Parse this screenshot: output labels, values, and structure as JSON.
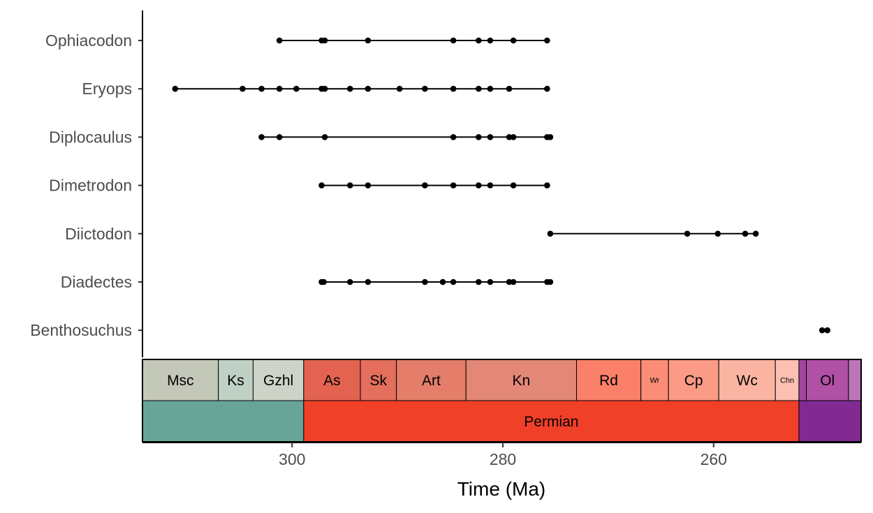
{
  "chart_data": {
    "type": "scatter",
    "xlabel": "Time (Ma)",
    "ylabel": "",
    "xlim": [
      314.2,
      246.0
    ],
    "x_reversed": true,
    "x_ticks": [
      300,
      280,
      260
    ],
    "grid": false,
    "taxa": [
      {
        "name": "Ophiacodon",
        "ages": [
          301.2,
          297.2,
          296.9,
          292.8,
          284.7,
          282.3,
          281.2,
          279.0,
          275.8
        ]
      },
      {
        "name": "Eryops",
        "ages": [
          311.1,
          304.7,
          302.9,
          301.2,
          299.6,
          297.2,
          296.9,
          294.5,
          292.8,
          289.8,
          287.4,
          284.7,
          282.3,
          281.2,
          279.4,
          275.8
        ]
      },
      {
        "name": "Diplocaulus",
        "ages": [
          302.9,
          301.2,
          296.9,
          284.7,
          282.3,
          281.2,
          279.4,
          279.0,
          275.8,
          275.5
        ]
      },
      {
        "name": "Dimetrodon",
        "ages": [
          297.2,
          294.5,
          292.8,
          287.4,
          284.7,
          282.3,
          281.2,
          279.0,
          275.8
        ]
      },
      {
        "name": "Diictodon",
        "ages": [
          275.5,
          262.5,
          259.6,
          257.0,
          256.0
        ]
      },
      {
        "name": "Diadectes",
        "ages": [
          297.2,
          297.0,
          294.5,
          292.8,
          287.4,
          285.7,
          284.7,
          282.3,
          281.2,
          279.4,
          279.0,
          275.8,
          275.5
        ]
      },
      {
        "name": "Benthosuchus",
        "ages": [
          249.7,
          249.2
        ]
      }
    ],
    "stages": [
      {
        "label": "Msc",
        "max": 315.2,
        "min": 307.0,
        "color": "#C4C8B8"
      },
      {
        "label": "Ks",
        "max": 307.0,
        "min": 303.7,
        "color": "#BFD0C5"
      },
      {
        "label": "Gzhl",
        "max": 303.7,
        "min": 298.9,
        "color": "#CCD4C7"
      },
      {
        "label": "As",
        "max": 298.9,
        "min": 293.52,
        "color": "#E36350"
      },
      {
        "label": "Sk",
        "max": 293.52,
        "min": 290.1,
        "color": "#E36F5C"
      },
      {
        "label": "Art",
        "max": 290.1,
        "min": 283.5,
        "color": "#E47D69"
      },
      {
        "label": "Kn",
        "max": 283.5,
        "min": 273.01,
        "color": "#E38776"
      },
      {
        "label": "Rd",
        "max": 273.01,
        "min": 266.9,
        "color": "#FB8069"
      },
      {
        "label": "Wr",
        "max": 266.9,
        "min": 264.28,
        "color": "#FB8D76"
      },
      {
        "label": "Cp",
        "max": 264.28,
        "min": 259.51,
        "color": "#FB9A85"
      },
      {
        "label": "Wc",
        "max": 259.51,
        "min": 254.14,
        "color": "#FCB4A2"
      },
      {
        "label": "Chn",
        "max": 254.14,
        "min": 251.902,
        "color": "#FCC0B2"
      },
      {
        "label": "",
        "max": 251.902,
        "min": 251.2,
        "color": "#A4469F"
      },
      {
        "label": "Ol",
        "max": 251.2,
        "min": 247.2,
        "color": "#B051A5"
      },
      {
        "label": "",
        "max": 247.2,
        "min": 242.0,
        "color": "#BC75B7"
      }
    ],
    "periods": [
      {
        "label": "",
        "max": 358.9,
        "min": 298.9,
        "color": "#67A599"
      },
      {
        "label": "Permian",
        "max": 298.9,
        "min": 251.902,
        "color": "#F04028"
      },
      {
        "label": "",
        "max": 251.902,
        "min": 201.3,
        "color": "#812B92"
      }
    ]
  }
}
